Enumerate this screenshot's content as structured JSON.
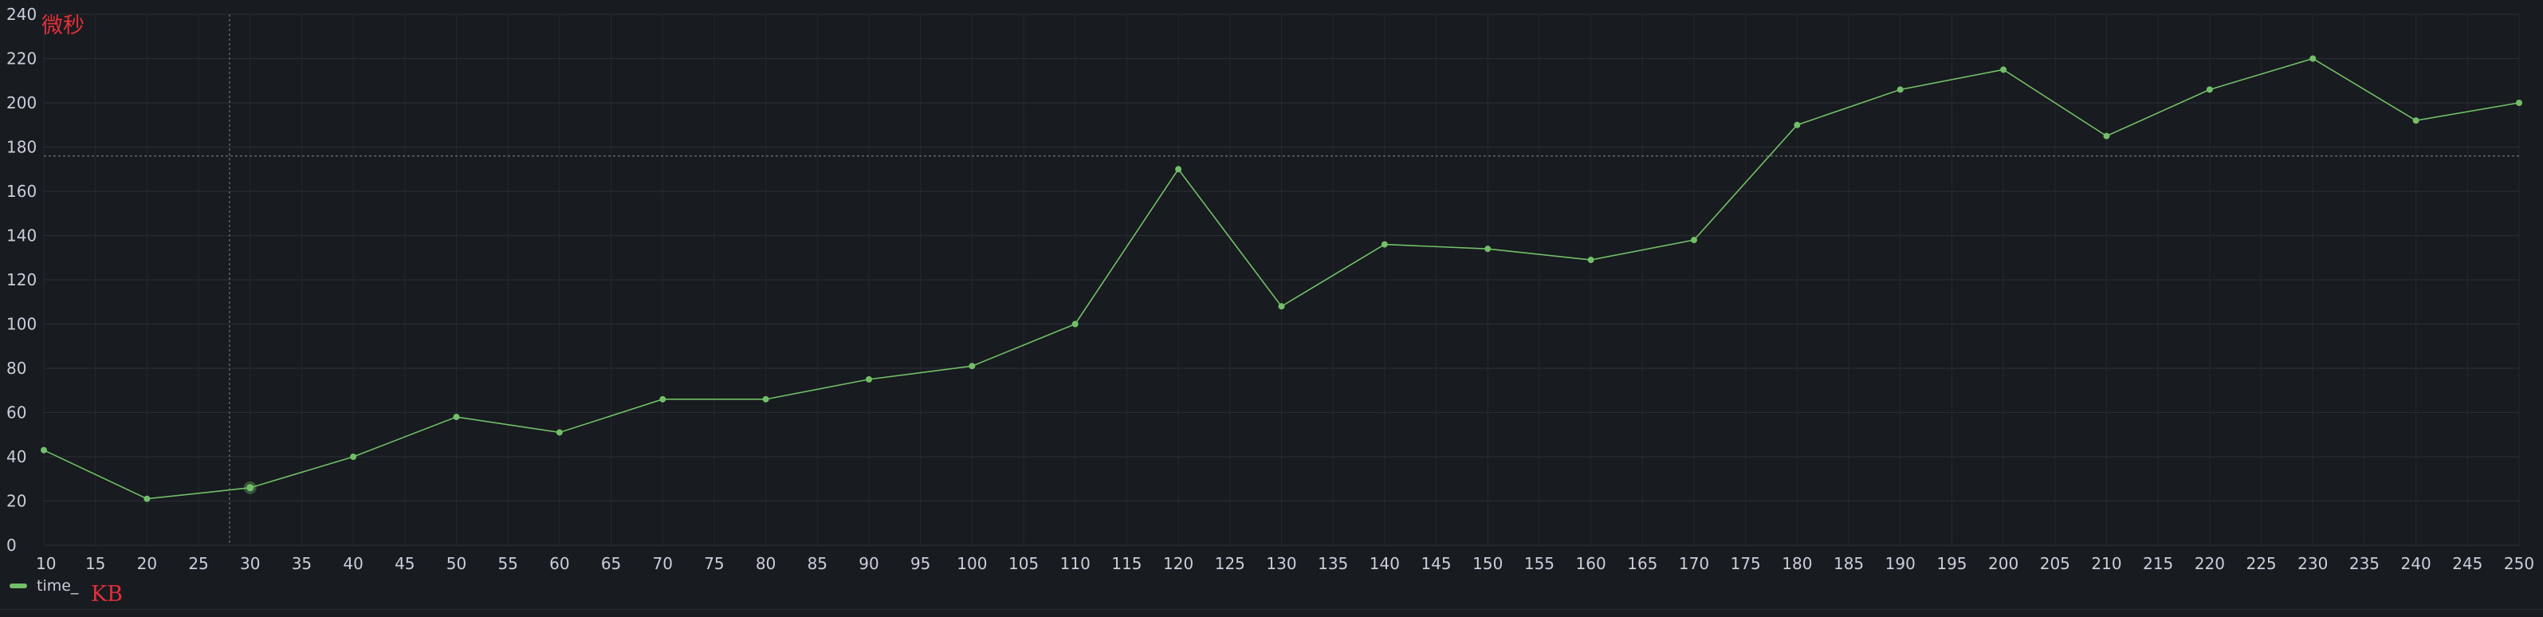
{
  "chart_data": {
    "type": "line",
    "x": [
      10,
      20,
      30,
      40,
      50,
      60,
      70,
      80,
      90,
      100,
      110,
      120,
      130,
      140,
      150,
      160,
      170,
      180,
      190,
      200,
      210,
      220,
      230,
      240,
      250
    ],
    "series": [
      {
        "name": "time_",
        "color": "#73bf69",
        "values": [
          43,
          21,
          26,
          40,
          58,
          51,
          66,
          66,
          75,
          81,
          100,
          170,
          108,
          136,
          134,
          129,
          138,
          190,
          206,
          215,
          185,
          206,
          220,
          192,
          200
        ]
      }
    ],
    "xlim": [
      10,
      250
    ],
    "ylim": [
      0,
      240
    ],
    "x_ticks": [
      10,
      15,
      20,
      25,
      30,
      35,
      40,
      45,
      50,
      55,
      60,
      65,
      70,
      75,
      80,
      85,
      90,
      95,
      100,
      105,
      110,
      115,
      120,
      125,
      130,
      135,
      140,
      145,
      150,
      155,
      160,
      165,
      170,
      175,
      180,
      185,
      190,
      195,
      200,
      205,
      210,
      215,
      220,
      225,
      230,
      235,
      240,
      245,
      "250"
    ],
    "y_ticks": [
      0,
      20,
      40,
      60,
      80,
      100,
      120,
      140,
      160,
      180,
      200,
      220,
      240
    ],
    "grid": true,
    "legend_position": "bottom-left",
    "crosshair": {
      "x": 28,
      "y": 176
    },
    "highlighted_x": 30
  },
  "annotations": {
    "y_unit": "微秒",
    "x_unit": "KB"
  },
  "legend": {
    "label": "time_"
  }
}
